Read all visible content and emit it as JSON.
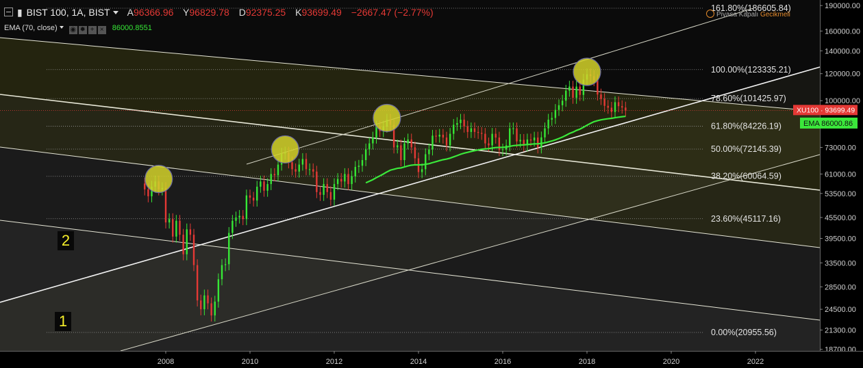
{
  "header": {
    "symbol": "BIST 100, 1A, BIST",
    "ohlc": [
      {
        "key": "A",
        "value": "96366.96"
      },
      {
        "key": "Y",
        "value": "96829.78"
      },
      {
        "key": "D",
        "value": "92375.25"
      },
      {
        "key": "K",
        "value": "93699.49"
      }
    ],
    "change": "−2667.47 (−2.77%)",
    "indicator_label": "EMA (70, close)",
    "indicator_value": "86000.8551",
    "market_status": "Piyasa Kapalı",
    "delay_status": "Gecikmeli"
  },
  "colors": {
    "background": "#000000",
    "up_candle": "#36e836",
    "down_candle": "#e53935",
    "ema_line": "#3be83b",
    "fib_highlight": "#f0ff50",
    "circle_fill": "#d4d22a",
    "label_red": "#e53935",
    "label_green": "#3be83b",
    "annotation": "#f6ef2a"
  },
  "chart_data": {
    "type": "candlestick",
    "timeframe": "1 month",
    "symbol": "XU100",
    "x_ticks": [
      "2008",
      "2010",
      "2012",
      "2014",
      "2016",
      "2018",
      "2020",
      "2022"
    ],
    "y_scale": "log",
    "y_ticks": [
      "190000.00",
      "160000.00",
      "140000.00",
      "120000.00",
      "100000.00",
      "86000.00",
      "73000.00",
      "61000.00",
      "53500.00",
      "45500.00",
      "39500.00",
      "33500.00",
      "28500.00",
      "24500.00",
      "21300.00",
      "18700.00"
    ],
    "ylim": [
      18000,
      195000
    ],
    "fib_levels": [
      {
        "label": "0.00%(20955.56)",
        "value": 20955.56
      },
      {
        "label": "23.60%(45117.16)",
        "value": 45117.16
      },
      {
        "label": "38.20%(60064.59)",
        "value": 60064.59
      },
      {
        "label": "50.00%(72145.39)",
        "value": 72145.39
      },
      {
        "label": "61.80%(84226.19)",
        "value": 84226.19
      },
      {
        "label": "78.60%(101425.97)",
        "value": 101425.97
      },
      {
        "label": "100.00%(123335.21)",
        "value": 123335.21
      },
      {
        "label": "161.80%(186605.84)",
        "value": 186605.84
      }
    ],
    "last_price": {
      "label": "XU100",
      "value": "93699.49"
    },
    "ema_label": {
      "label": "EMA",
      "value": "86000.86"
    },
    "closes": [
      {
        "d": "2007-07",
        "c": 55000
      },
      {
        "d": "2007-08",
        "c": 52500
      },
      {
        "d": "2007-09",
        "c": 56000
      },
      {
        "d": "2007-10",
        "c": 58000
      },
      {
        "d": "2007-11",
        "c": 55000
      },
      {
        "d": "2007-12",
        "c": 55500
      },
      {
        "d": "2008-01",
        "c": 44000
      },
      {
        "d": "2008-02",
        "c": 45000
      },
      {
        "d": "2008-03",
        "c": 40000
      },
      {
        "d": "2008-04",
        "c": 44500
      },
      {
        "d": "2008-05",
        "c": 40500
      },
      {
        "d": "2008-06",
        "c": 35500
      },
      {
        "d": "2008-07",
        "c": 42000
      },
      {
        "d": "2008-08",
        "c": 40500
      },
      {
        "d": "2008-09",
        "c": 33000
      },
      {
        "d": "2008-10",
        "c": 26000
      },
      {
        "d": "2008-11",
        "c": 24500
      },
      {
        "d": "2008-12",
        "c": 26900
      },
      {
        "d": "2009-01",
        "c": 25500
      },
      {
        "d": "2009-02",
        "c": 23500
      },
      {
        "d": "2009-03",
        "c": 25800
      },
      {
        "d": "2009-04",
        "c": 30000
      },
      {
        "d": "2009-05",
        "c": 33000
      },
      {
        "d": "2009-06",
        "c": 33200
      },
      {
        "d": "2009-07",
        "c": 41000
      },
      {
        "d": "2009-08",
        "c": 44500
      },
      {
        "d": "2009-09",
        "c": 45500
      },
      {
        "d": "2009-10",
        "c": 46000
      },
      {
        "d": "2009-11",
        "c": 45000
      },
      {
        "d": "2009-12",
        "c": 52800
      },
      {
        "d": "2010-01",
        "c": 52000
      },
      {
        "d": "2010-02",
        "c": 51000
      },
      {
        "d": "2010-03",
        "c": 56000
      },
      {
        "d": "2010-04",
        "c": 58000
      },
      {
        "d": "2010-05",
        "c": 54500
      },
      {
        "d": "2010-06",
        "c": 57000
      },
      {
        "d": "2010-07",
        "c": 61000
      },
      {
        "d": "2010-08",
        "c": 60500
      },
      {
        "d": "2010-09",
        "c": 65000
      },
      {
        "d": "2010-10",
        "c": 70000
      },
      {
        "d": "2010-11",
        "c": 70500
      },
      {
        "d": "2010-12",
        "c": 66000
      },
      {
        "d": "2011-01",
        "c": 63000
      },
      {
        "d": "2011-02",
        "c": 62000
      },
      {
        "d": "2011-03",
        "c": 65000
      },
      {
        "d": "2011-04",
        "c": 67500
      },
      {
        "d": "2011-05",
        "c": 63000
      },
      {
        "d": "2011-06",
        "c": 63000
      },
      {
        "d": "2011-07",
        "c": 62000
      },
      {
        "d": "2011-08",
        "c": 54000
      },
      {
        "d": "2011-09",
        "c": 53000
      },
      {
        "d": "2011-10",
        "c": 57000
      },
      {
        "d": "2011-11",
        "c": 54000
      },
      {
        "d": "2011-12",
        "c": 51300
      },
      {
        "d": "2012-01",
        "c": 57000
      },
      {
        "d": "2012-02",
        "c": 59000
      },
      {
        "d": "2012-03",
        "c": 58000
      },
      {
        "d": "2012-04",
        "c": 61000
      },
      {
        "d": "2012-05",
        "c": 57000
      },
      {
        "d": "2012-06",
        "c": 60000
      },
      {
        "d": "2012-07",
        "c": 64000
      },
      {
        "d": "2012-08",
        "c": 64500
      },
      {
        "d": "2012-09",
        "c": 67000
      },
      {
        "d": "2012-10",
        "c": 72000
      },
      {
        "d": "2012-11",
        "c": 75000
      },
      {
        "d": "2012-12",
        "c": 78000
      },
      {
        "d": "2013-01",
        "c": 84000
      },
      {
        "d": "2013-02",
        "c": 81500
      },
      {
        "d": "2013-03",
        "c": 84000
      },
      {
        "d": "2013-04",
        "c": 88000
      },
      {
        "d": "2013-05",
        "c": 85000
      },
      {
        "d": "2013-06",
        "c": 73000
      },
      {
        "d": "2013-07",
        "c": 74000
      },
      {
        "d": "2013-08",
        "c": 67000
      },
      {
        "d": "2013-09",
        "c": 75000
      },
      {
        "d": "2013-10",
        "c": 77000
      },
      {
        "d": "2013-11",
        "c": 73000
      },
      {
        "d": "2013-12",
        "c": 67800
      },
      {
        "d": "2014-01",
        "c": 61800
      },
      {
        "d": "2014-02",
        "c": 63000
      },
      {
        "d": "2014-03",
        "c": 69700
      },
      {
        "d": "2014-04",
        "c": 72000
      },
      {
        "d": "2014-05",
        "c": 79000
      },
      {
        "d": "2014-06",
        "c": 78500
      },
      {
        "d": "2014-07",
        "c": 79500
      },
      {
        "d": "2014-08",
        "c": 78000
      },
      {
        "d": "2014-09",
        "c": 74000
      },
      {
        "d": "2014-10",
        "c": 80000
      },
      {
        "d": "2014-11",
        "c": 85000
      },
      {
        "d": "2014-12",
        "c": 86000
      },
      {
        "d": "2015-01",
        "c": 88000
      },
      {
        "d": "2015-02",
        "c": 84000
      },
      {
        "d": "2015-03",
        "c": 81000
      },
      {
        "d": "2015-04",
        "c": 83000
      },
      {
        "d": "2015-05",
        "c": 81000
      },
      {
        "d": "2015-06",
        "c": 80500
      },
      {
        "d": "2015-07",
        "c": 80000
      },
      {
        "d": "2015-08",
        "c": 75000
      },
      {
        "d": "2015-09",
        "c": 74000
      },
      {
        "d": "2015-10",
        "c": 80000
      },
      {
        "d": "2015-11",
        "c": 78000
      },
      {
        "d": "2015-12",
        "c": 71700
      },
      {
        "d": "2016-01",
        "c": 72000
      },
      {
        "d": "2016-02",
        "c": 74000
      },
      {
        "d": "2016-03",
        "c": 83000
      },
      {
        "d": "2016-04",
        "c": 83000
      },
      {
        "d": "2016-05",
        "c": 76000
      },
      {
        "d": "2016-06",
        "c": 76800
      },
      {
        "d": "2016-07",
        "c": 74000
      },
      {
        "d": "2016-08",
        "c": 77000
      },
      {
        "d": "2016-09",
        "c": 76500
      },
      {
        "d": "2016-10",
        "c": 78000
      },
      {
        "d": "2016-11",
        "c": 73000
      },
      {
        "d": "2016-12",
        "c": 78100
      },
      {
        "d": "2017-01",
        "c": 83000
      },
      {
        "d": "2017-02",
        "c": 88000
      },
      {
        "d": "2017-03",
        "c": 89000
      },
      {
        "d": "2017-04",
        "c": 94000
      },
      {
        "d": "2017-05",
        "c": 97000
      },
      {
        "d": "2017-06",
        "c": 100000
      },
      {
        "d": "2017-07",
        "c": 107000
      },
      {
        "d": "2017-08",
        "c": 110000
      },
      {
        "d": "2017-09",
        "c": 102000
      },
      {
        "d": "2017-10",
        "c": 110000
      },
      {
        "d": "2017-11",
        "c": 104000
      },
      {
        "d": "2017-12",
        "c": 115300
      },
      {
        "d": "2018-01",
        "c": 119500
      },
      {
        "d": "2018-02",
        "c": 118000
      },
      {
        "d": "2018-03",
        "c": 114900
      },
      {
        "d": "2018-04",
        "c": 104300
      },
      {
        "d": "2018-05",
        "c": 101200
      },
      {
        "d": "2018-06",
        "c": 96600
      },
      {
        "d": "2018-07",
        "c": 95400
      },
      {
        "d": "2018-08",
        "c": 92700
      },
      {
        "d": "2018-09",
        "c": 99000
      },
      {
        "d": "2018-10",
        "c": 96400
      },
      {
        "d": "2018-11",
        "c": 95500
      },
      {
        "d": "2018-12",
        "c": 93699.49
      }
    ],
    "ema_start": "2012-10",
    "highlight_circles": [
      {
        "d": "2007-11",
        "price": 59000
      },
      {
        "d": "2010-11",
        "price": 72000
      },
      {
        "d": "2013-04",
        "price": 89000
      },
      {
        "d": "2018-01",
        "price": 121500
      }
    ],
    "annotations": [
      {
        "text": "2"
      },
      {
        "text": "1"
      }
    ]
  }
}
